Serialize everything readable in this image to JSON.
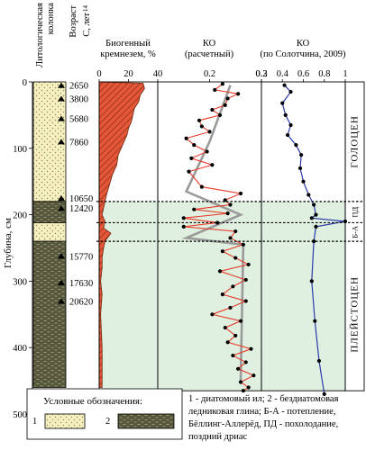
{
  "chart_data": [
    {
      "type": "column",
      "title": "Литологическая колонка",
      "header": [
        "Литологическая",
        "колонка"
      ],
      "units": [
        {
          "from": 0,
          "to": 180,
          "type": "1",
          "fill_color": "#f6efbf"
        },
        {
          "from": 180,
          "to": 212,
          "type": "2",
          "fill_color": "#55563a"
        },
        {
          "from": 212,
          "to": 240,
          "type": "1",
          "fill_color": "#f6efbf"
        },
        {
          "from": 240,
          "to": 460,
          "type": "2",
          "fill_color": "#55563a"
        }
      ],
      "ages": [
        {
          "depth": 5,
          "label": "2650"
        },
        {
          "depth": 25,
          "label": "3800"
        },
        {
          "depth": 55,
          "label": "5680"
        },
        {
          "depth": 90,
          "label": "7860"
        },
        {
          "depth": 175,
          "label": "10650"
        },
        {
          "depth": 190,
          "label": "12420"
        },
        {
          "depth": 262,
          "label": "15770"
        },
        {
          "depth": 302,
          "label": "17630"
        },
        {
          "depth": 330,
          "label": "20620"
        }
      ],
      "age_header": [
        "Возраст",
        "14",
        "C, лет"
      ]
    },
    {
      "type": "area",
      "title": "Биогенный кремнезем, %",
      "header": [
        "Биогенный",
        "кремнезем, %"
      ],
      "xlim": [
        0,
        40
      ],
      "xticks": [
        "0",
        "20",
        "40"
      ],
      "fill_color": "#e6573a",
      "hatch_color": "#8a3312",
      "x": [
        30,
        31,
        28,
        27,
        24,
        23,
        22,
        20,
        19,
        16,
        13,
        12,
        9,
        7,
        5,
        4,
        3,
        2,
        4,
        3,
        8,
        4,
        3,
        2,
        2,
        1,
        2,
        1,
        2,
        2
      ],
      "y": [
        2,
        10,
        20,
        30,
        40,
        50,
        60,
        70,
        80,
        95,
        110,
        125,
        140,
        155,
        170,
        180,
        190,
        200,
        210,
        220,
        228,
        240,
        250,
        265,
        280,
        300,
        320,
        350,
        400,
        460
      ]
    },
    {
      "type": "line",
      "title": "КО (расчетный)",
      "header": [
        "КО",
        "(расчетный)"
      ],
      "xlim": [
        0.1,
        0.3
      ],
      "xticks": [
        "0.2",
        "0.3"
      ],
      "xtick_values": [
        0.2,
        0.3
      ],
      "x": [
        0.225,
        0.21,
        0.255,
        0.235,
        0.23,
        0.205,
        0.22,
        0.18,
        0.185,
        0.2,
        0.155,
        0.17,
        0.195,
        0.165,
        0.205,
        0.16,
        0.185,
        0.26,
        0.23,
        0.24,
        0.17,
        0.235,
        0.15,
        0.215,
        0.15,
        0.25,
        0.24,
        0.265,
        0.225,
        0.25,
        0.275,
        0.22,
        0.27,
        0.245,
        0.225,
        0.27,
        0.24,
        0.205,
        0.26,
        0.23,
        0.25,
        0.235,
        0.28,
        0.245,
        0.27,
        0.255,
        0.285,
        0.26,
        0.275,
        0.265
      ],
      "y": [
        3,
        12,
        18,
        25,
        35,
        42,
        50,
        58,
        67,
        75,
        85,
        95,
        105,
        115,
        125,
        135,
        158,
        168,
        178,
        185,
        192,
        198,
        205,
        212,
        218,
        225,
        235,
        245,
        255,
        265,
        275,
        285,
        298,
        308,
        320,
        330,
        340,
        350,
        360,
        370,
        382,
        392,
        402,
        412,
        422,
        432,
        442,
        452,
        460,
        465
      ],
      "trend": {
        "x": [
          0.24,
          0.2,
          0.155,
          0.26,
          0.155,
          0.265,
          0.26
        ],
        "y": [
          5,
          90,
          165,
          200,
          235,
          245,
          450
        ]
      },
      "line_color": "#e83a2a",
      "trend_color": "#9a9a9a"
    },
    {
      "type": "line",
      "title": "КО (по Солотчина, 2009)",
      "header": [
        "КО",
        "(по Солотчина, 2009)"
      ],
      "xlim": [
        0.2,
        1.0
      ],
      "xticks": [
        "0.2",
        "0.4",
        "0.6",
        "0.8",
        "1"
      ],
      "xtick_values": [
        0.2,
        0.4,
        0.6,
        0.8,
        1.0
      ],
      "x": [
        0.42,
        0.48,
        0.4,
        0.43,
        0.48,
        0.45,
        0.53,
        0.58,
        0.57,
        0.6,
        0.65,
        0.7,
        0.72,
        0.68,
        1.0,
        0.72,
        0.7,
        0.68,
        0.71,
        0.75,
        0.8
      ],
      "y": [
        5,
        15,
        32,
        50,
        65,
        80,
        95,
        110,
        130,
        150,
        170,
        185,
        200,
        205,
        210,
        218,
        240,
        300,
        360,
        420,
        470
      ],
      "line_color": "#2a3aa8"
    }
  ],
  "y_axis": {
    "label": "Глубина, см",
    "ticks": [
      "0",
      "100",
      "200",
      "300",
      "400",
      "500"
    ],
    "tick_values": [
      0,
      100,
      200,
      300,
      400,
      500
    ],
    "ylim": [
      0,
      500
    ]
  },
  "boundaries": [
    180,
    212,
    240
  ],
  "periods": [
    {
      "label": "ГОЛОЦЕН",
      "from": 0,
      "to": 180
    },
    {
      "label": "ПД",
      "from": 180,
      "to": 212
    },
    {
      "label": "Б-А",
      "from": 212,
      "to": 240
    },
    {
      "label": "ПЛЕЙСТОЦЕН",
      "from": 240,
      "to": 460
    }
  ],
  "shade_color": "#dff0e0",
  "legend": {
    "title": "Условные обозначения:",
    "items": [
      {
        "label": "1",
        "fill_color": "#f6efbf"
      },
      {
        "label": "2",
        "fill_color": "#55563a"
      }
    ],
    "caption": [
      "1 - диатомовый ил; 2 - бездиатомовая",
      "ледниковая глина; Б-А - потепление,",
      "Бёллинг-Аллерёд, ПД - похолодание,",
      "поздний дриас"
    ]
  }
}
